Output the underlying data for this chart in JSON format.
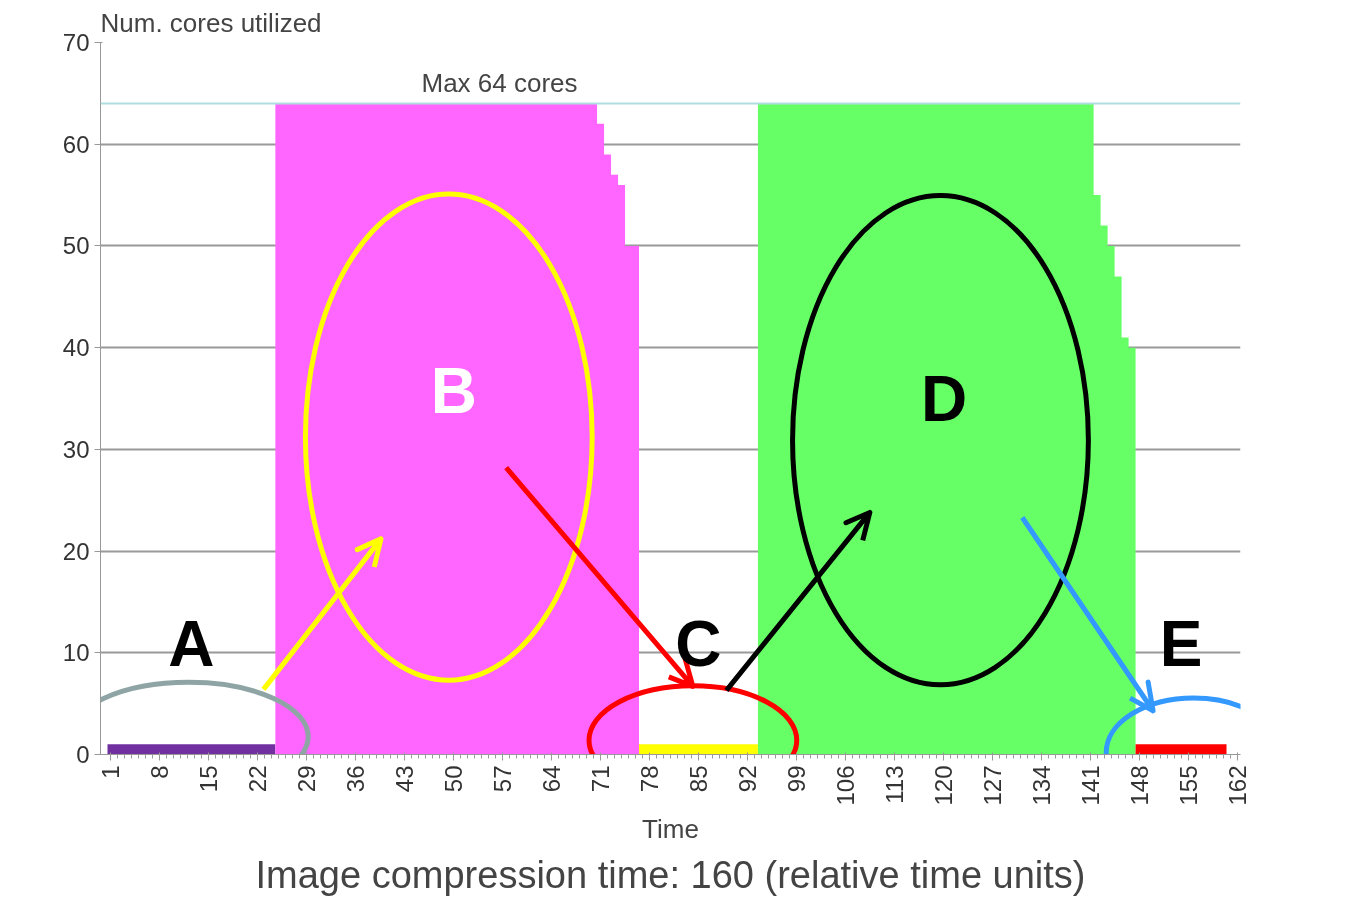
{
  "chart_data": {
    "type": "area",
    "ylabel": "Num. cores utilized",
    "xlabel": "Time",
    "xlim": [
      -0.5,
      162.5
    ],
    "ylim": [
      0,
      70
    ],
    "xticks": [
      1,
      8,
      15,
      22,
      29,
      36,
      43,
      50,
      57,
      64,
      71,
      78,
      85,
      92,
      99,
      106,
      113,
      120,
      127,
      134,
      141,
      148,
      155,
      162
    ],
    "yticks": [
      0,
      10,
      20,
      30,
      40,
      50,
      60,
      70
    ],
    "grid": "y",
    "series": [
      {
        "color": "#7030a0",
        "x": [
          0.5,
          24.5
        ],
        "values": [
          1,
          1
        ]
      },
      {
        "color": "#ff66ff",
        "x": [
          24.5,
          70.5,
          71.5,
          72.5,
          73.5,
          74.5,
          76.5
        ],
        "values": [
          64,
          62,
          59,
          57,
          56,
          50,
          50
        ]
      },
      {
        "color": "#ffff00",
        "x": [
          76.5,
          93.5
        ],
        "values": [
          1,
          1
        ]
      },
      {
        "color": "#66ff66",
        "x": [
          93.5,
          141.5,
          142.5,
          143.5,
          144.5,
          145.5,
          146.5,
          147.5
        ],
        "values": [
          64,
          55,
          52,
          50,
          47,
          41,
          40,
          40
        ]
      },
      {
        "color": "#ff0000",
        "x": [
          147.5,
          160.5
        ],
        "values": [
          1,
          1
        ]
      }
    ],
    "ref_lines": [
      {
        "axis": "y",
        "value": 64,
        "label": "Max 64 cores",
        "color": "#b0dde0"
      }
    ],
    "annotations": [
      {
        "text": "A",
        "x": 12.5,
        "y": 1
      },
      "B",
      {
        "text": "C",
        "x": 85,
        "y": 1
      },
      "D",
      {
        "text": "E",
        "x": 154,
        "y": 1
      },
      "Image compression time: 160 (relative time units)"
    ]
  }
}
